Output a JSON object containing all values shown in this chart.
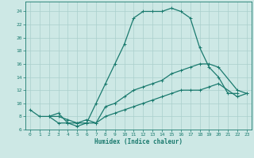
{
  "xlabel": "Humidex (Indice chaleur)",
  "xlim": [
    -0.5,
    23.5
  ],
  "ylim": [
    6,
    25.5
  ],
  "yticks": [
    6,
    8,
    10,
    12,
    14,
    16,
    18,
    20,
    22,
    24
  ],
  "xticks": [
    0,
    1,
    2,
    3,
    4,
    5,
    6,
    7,
    8,
    9,
    10,
    11,
    12,
    13,
    14,
    15,
    16,
    17,
    18,
    19,
    20,
    21,
    22,
    23
  ],
  "bg_color": "#cde8e5",
  "grid_color": "#aacfcc",
  "line_color": "#1a7a6e",
  "curve1_x": [
    0,
    1,
    2,
    3,
    4,
    5,
    6,
    7,
    8,
    9,
    10,
    11,
    12,
    13,
    14,
    15,
    16,
    17,
    18,
    19,
    20,
    21,
    22
  ],
  "curve1_y": [
    9.0,
    8.0,
    8.0,
    7.0,
    7.0,
    7.0,
    7.0,
    10.0,
    13.0,
    16.0,
    19.0,
    23.0,
    24.0,
    24.0,
    24.0,
    24.5,
    24.0,
    23.0,
    18.5,
    15.5,
    14.0,
    11.5,
    11.5
  ],
  "curve2_x": [
    2,
    3,
    4,
    5,
    6,
    7,
    8,
    9,
    10,
    11,
    12,
    13,
    14,
    15,
    16,
    17,
    18,
    19,
    20,
    22,
    23
  ],
  "curve2_y": [
    8.0,
    8.5,
    7.0,
    6.5,
    7.0,
    7.0,
    9.5,
    10.0,
    11.0,
    12.0,
    12.5,
    13.0,
    13.5,
    14.5,
    15.0,
    15.5,
    16.0,
    16.0,
    15.5,
    12.0,
    11.5
  ],
  "curve3_x": [
    2,
    3,
    4,
    5,
    6,
    7,
    8,
    9,
    10,
    11,
    12,
    13,
    14,
    15,
    16,
    17,
    18,
    19,
    20,
    22,
    23
  ],
  "curve3_y": [
    8.0,
    8.0,
    7.5,
    7.0,
    7.5,
    7.0,
    8.0,
    8.5,
    9.0,
    9.5,
    10.0,
    10.5,
    11.0,
    11.5,
    12.0,
    12.0,
    12.0,
    12.5,
    13.0,
    11.0,
    11.5
  ]
}
